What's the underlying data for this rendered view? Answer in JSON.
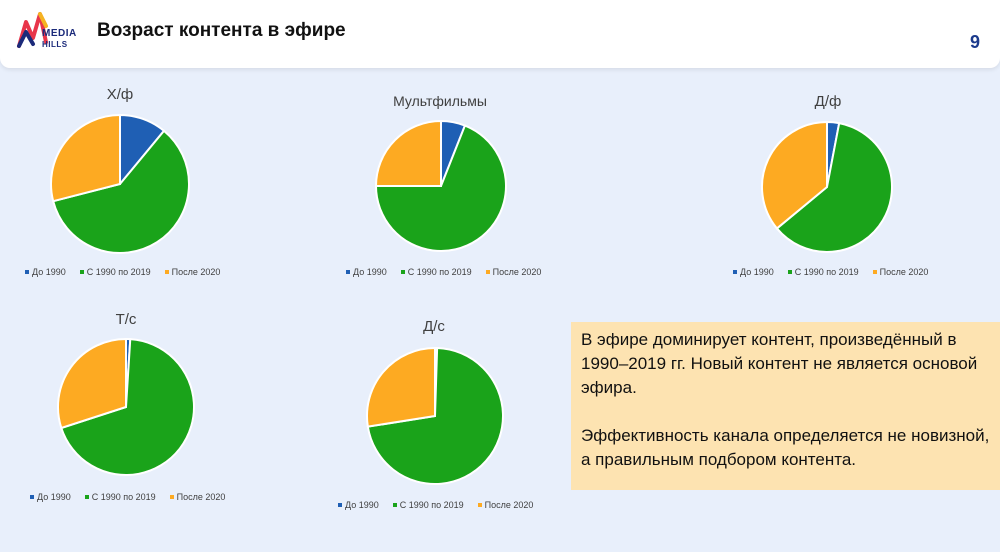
{
  "header": {
    "logo_line1": "MEDIA",
    "logo_line2": "HILLS",
    "title": "Возраст контента в эфире",
    "page_number": "9"
  },
  "colors": {
    "before_1990": "#1f5fb4",
    "1990_2019": "#1aa31a",
    "after_2020": "#fdaa22"
  },
  "chart_data": [
    {
      "type": "pie",
      "title": "Х/ф",
      "categories": [
        "До 1990",
        "С 1990 по 2019",
        "После 2020"
      ],
      "values": [
        11,
        60,
        29
      ]
    },
    {
      "type": "pie",
      "title": "Мультфильмы",
      "categories": [
        "До 1990",
        "С 1990 по 2019",
        "После 2020"
      ],
      "values": [
        6,
        69,
        25
      ]
    },
    {
      "type": "pie",
      "title": "Д/ф",
      "categories": [
        "До 1990",
        "С 1990 по 2019",
        "После 2020"
      ],
      "values": [
        3,
        61,
        36
      ]
    },
    {
      "type": "pie",
      "title": "Т/с",
      "categories": [
        "До 1990",
        "С 1990 по 2019",
        "После 2020"
      ],
      "values": [
        1,
        69,
        30
      ]
    },
    {
      "type": "pie",
      "title": "Д/с",
      "categories": [
        "До 1990",
        "С 1990 по 2019",
        "После 2020"
      ],
      "values": [
        0.5,
        72,
        27.5
      ]
    }
  ],
  "note": {
    "paragraph1": "В эфире доминирует контент, произведённый в 1990–2019 гг. Новый контент не является основой эфира.",
    "paragraph2": "Эффективность канала определяется не новизной, а правильным подбором контента."
  }
}
